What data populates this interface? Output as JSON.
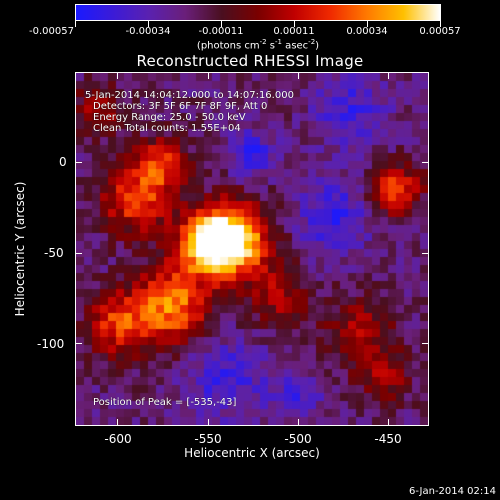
{
  "chart_data": {
    "type": "heatmap",
    "title": "Reconstructed RHESSI Image",
    "xlabel": "Heliocentric X (arcsec)",
    "ylabel": "Heliocentric Y (arcsec)",
    "xlim": [
      -623,
      -427
    ],
    "ylim": [
      -146,
      50
    ],
    "x_ticks": [
      "-600",
      "-550",
      "-500",
      "-450"
    ],
    "x_tick_values": [
      -600,
      -550,
      -500,
      -450
    ],
    "y_ticks": [
      "0",
      "-50",
      "-100"
    ],
    "y_tick_values": [
      0,
      -50,
      -100
    ],
    "colorbar": {
      "tick_labels": [
        "-0.00057",
        "-0.00034",
        "-0.00011",
        "0.00011",
        "0.00034",
        "0.00057"
      ],
      "units_prefix": "(photons cm",
      "units_exp1": "-2",
      "units_mid1": " s",
      "units_exp2": "-1",
      "units_mid2": " asec",
      "units_exp3": "-2",
      "units_suffix": ")",
      "min": -0.00057,
      "max": 0.00057,
      "colormap": "rainbow/hot (blue-purple-black-red-orange-yellow-white)"
    },
    "annotations": {
      "time_range": "5-Jan-2014 14:04:12.000 to 14:07:16.000",
      "detectors": "Detectors: 3F 5F 6F 7F 8F 9F, Att 0",
      "energy_range": "Energy Range: 25.0 - 50.0 keV",
      "method": "Clean    Total counts: 1.55E+04",
      "peak": "Position of Peak = [-535,-43]"
    },
    "peak": {
      "x": -535,
      "y": -43
    },
    "grid": false,
    "colors": {
      "background": "#000000",
      "negative_low": "#1a1aff",
      "negative_mid": "#5a21b0",
      "zero": "#000000",
      "positive_mid": "#c00000",
      "positive_high": "#ffc000",
      "peak": "#ffffff"
    }
  },
  "footer": {
    "date": "6-Jan-2014 02:14"
  }
}
